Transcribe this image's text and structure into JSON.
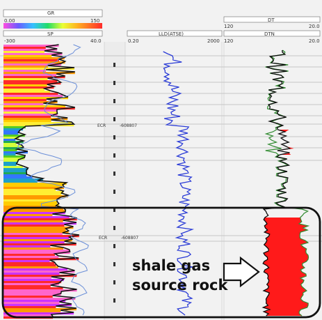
{
  "headers": {
    "gr": {
      "name": "GR",
      "min": "0.00",
      "max": "150"
    },
    "sp": {
      "name": "SP",
      "min": "-300",
      "max": "40.0"
    },
    "resistivity": {
      "name": "LLD(ATSE)",
      "min": "0.20",
      "max": "2000"
    },
    "dt": {
      "name": "DT",
      "min": "120",
      "max": "20.0"
    },
    "dtn": {
      "name": "DTN",
      "min": "120",
      "max": "20.0"
    }
  },
  "depth_labels": [
    {
      "label": "ECR",
      "note": "-608807"
    },
    {
      "label": "ECR",
      "note": "-608807"
    }
  ],
  "annotation": {
    "line1": "shale gas",
    "line2": "source rock"
  },
  "colors": {
    "gr_bands": [
      "#ff9900",
      "#ff2a2a",
      "#ff66cc",
      "#cc33ff",
      "#ffcc00",
      "#ffee33",
      "#d4ff3a",
      "#55cc22",
      "#22aa55",
      "#1ea0c8",
      "#3377ff"
    ],
    "resistivity_curve": "#2a3bd6",
    "sonic_curve": "#0a0a0a",
    "sonic_fill": "#ff1a1a",
    "highlight_box": "#111111"
  }
}
